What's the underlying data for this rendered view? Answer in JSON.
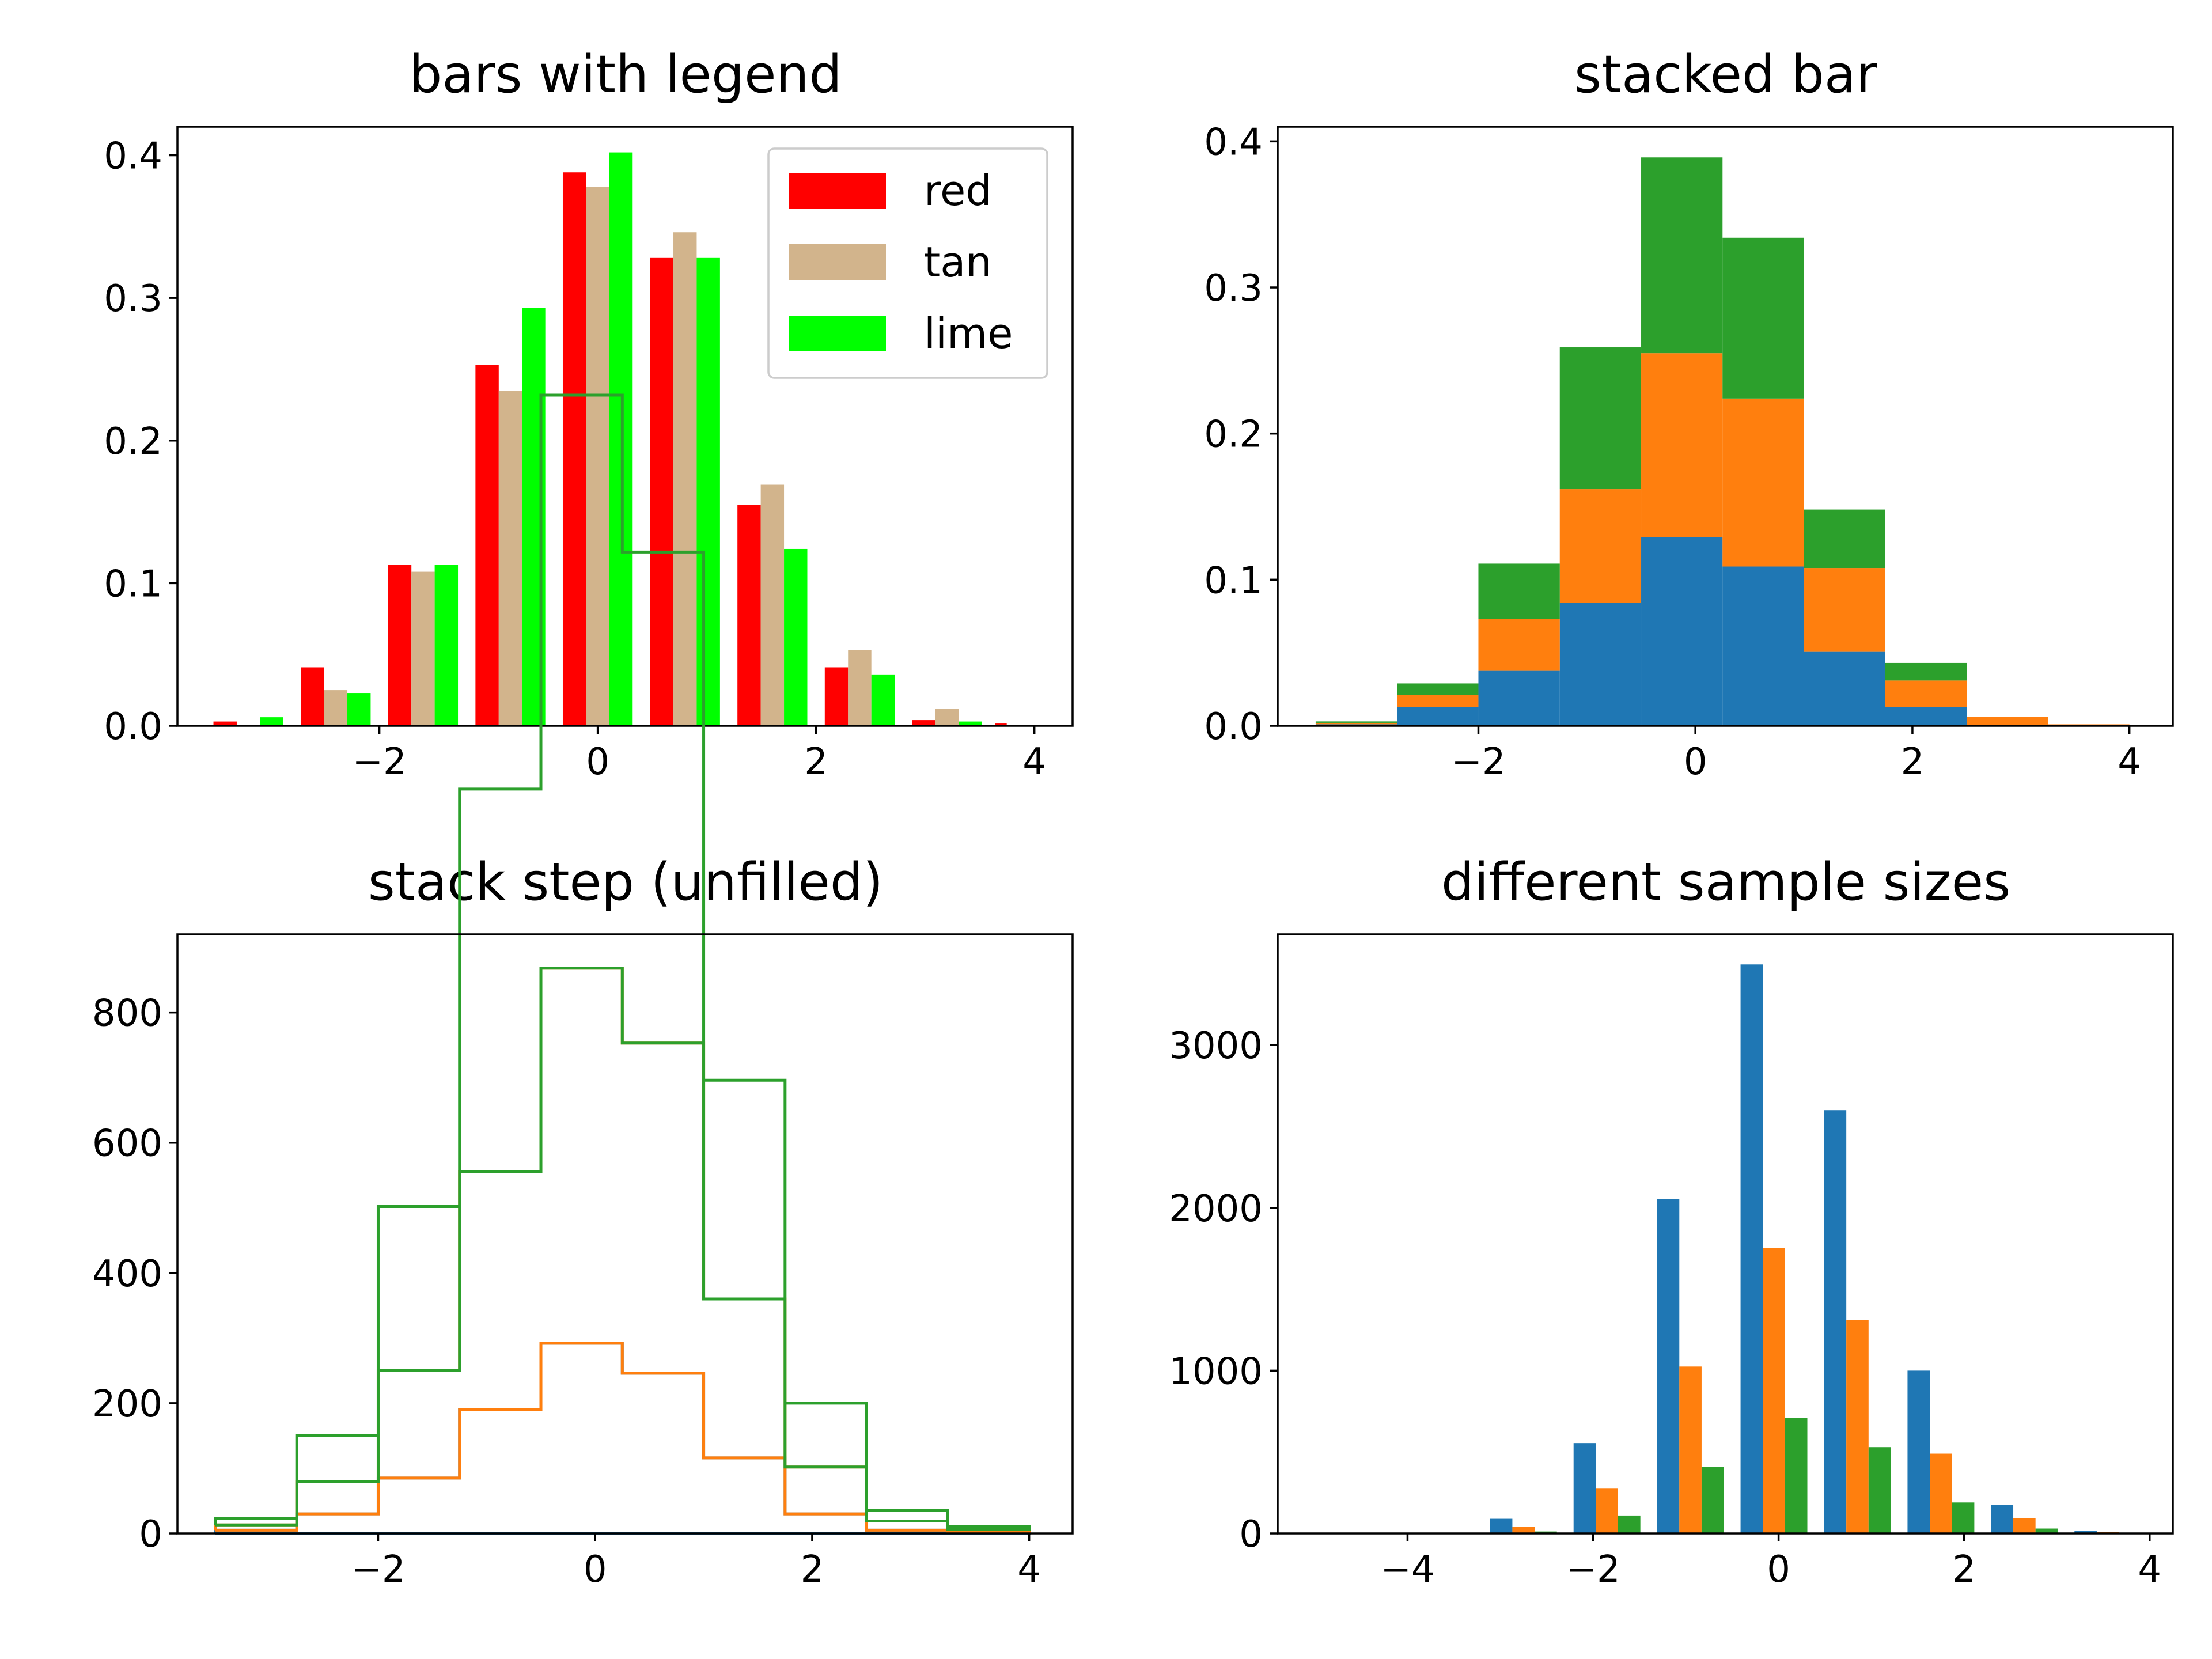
{
  "chart_data": [
    {
      "type": "bar",
      "variant": "grouped-histogram",
      "title": "bars with legend",
      "xlabel": "",
      "ylabel": "",
      "xlim": [
        -3.85,
        4.35
      ],
      "ylim": [
        0,
        0.42
      ],
      "xticks": [
        -2,
        0,
        2,
        4
      ],
      "yticks": [
        0.0,
        0.1,
        0.2,
        0.3,
        0.4
      ],
      "xtick_labels": [
        "−2",
        "0",
        "2",
        "4"
      ],
      "ytick_labels": [
        "0.0",
        "0.1",
        "0.2",
        "0.3",
        "0.4"
      ],
      "bin_edges": [
        -3.6,
        -2.8,
        -2.0,
        -1.2,
        -0.4,
        0.4,
        1.2,
        2.0,
        2.8,
        3.6,
        4.0
      ],
      "legend": {
        "position": "top-right",
        "entries": [
          "red",
          "tan",
          "lime"
        ]
      },
      "grid": false,
      "series": [
        {
          "name": "red",
          "color": "#ff0000",
          "values": [
            0.003,
            0.041,
            0.113,
            0.253,
            0.388,
            0.328,
            0.155,
            0.041,
            0.004,
            0.002
          ]
        },
        {
          "name": "tan",
          "color": "#d2b48c",
          "values": [
            0.0,
            0.025,
            0.108,
            0.235,
            0.378,
            0.346,
            0.169,
            0.053,
            0.012,
            0.0
          ]
        },
        {
          "name": "lime",
          "color": "#00ff00",
          "values": [
            0.006,
            0.023,
            0.113,
            0.293,
            0.402,
            0.328,
            0.124,
            0.036,
            0.003,
            0.0005
          ]
        }
      ]
    },
    {
      "type": "bar",
      "variant": "stacked-histogram",
      "title": "stacked bar",
      "xlabel": "",
      "ylabel": "",
      "xlim": [
        -3.85,
        4.4
      ],
      "ylim": [
        0,
        0.41
      ],
      "xticks": [
        -2,
        0,
        2,
        4
      ],
      "yticks": [
        0.0,
        0.1,
        0.2,
        0.3,
        0.4
      ],
      "xtick_labels": [
        "−2",
        "0",
        "2",
        "4"
      ],
      "ytick_labels": [
        "0.0",
        "0.1",
        "0.2",
        "0.3",
        "0.4"
      ],
      "bin_edges": [
        -3.5,
        -2.75,
        -2.0,
        -1.25,
        -0.5,
        0.25,
        1.0,
        1.75,
        2.5,
        3.25,
        4.0
      ],
      "grid": false,
      "series": [
        {
          "color": "#1f77b4",
          "values": [
            0.001,
            0.013,
            0.038,
            0.084,
            0.129,
            0.109,
            0.051,
            0.013,
            0.0,
            0.0
          ]
        },
        {
          "color": "#ff7f0e",
          "values": [
            0.001,
            0.008,
            0.035,
            0.078,
            0.126,
            0.115,
            0.057,
            0.018,
            0.006,
            0.001
          ]
        },
        {
          "color": "#2ca02c",
          "values": [
            0.001,
            0.008,
            0.038,
            0.097,
            0.134,
            0.11,
            0.04,
            0.012,
            0.0,
            0.0
          ]
        }
      ]
    },
    {
      "type": "line",
      "variant": "stacked-step-histogram",
      "title": "stack step (unfilled)",
      "xlabel": "",
      "ylabel": "",
      "xlim": [
        -3.85,
        4.4
      ],
      "ylim": [
        0,
        920
      ],
      "xticks": [
        -2,
        0,
        2,
        4
      ],
      "yticks": [
        0,
        200,
        400,
        600,
        800
      ],
      "xtick_labels": [
        "−2",
        "0",
        "2",
        "4"
      ],
      "ytick_labels": [
        "0",
        "200",
        "400",
        "600",
        "800"
      ],
      "bin_edges": [
        -3.5,
        -2.75,
        -2.0,
        -1.25,
        -0.5,
        0.25,
        1.0,
        1.75,
        2.5,
        3.25,
        4.0
      ],
      "grid": false,
      "series": [
        {
          "color": "#1f77b4",
          "values": [
            5,
            30,
            85,
            190,
            292,
            246,
            116,
            30,
            5,
            2
          ]
        },
        {
          "color": "#ff7f0e",
          "values": [
            8,
            50,
            165,
            366,
            576,
            507,
            244,
            72,
            14,
            4
          ]
        },
        {
          "color": "#2ca02c",
          "values": [
            10,
            70,
            252,
            587,
            880,
            754,
            336,
            98,
            16,
            5
          ]
        }
      ]
    },
    {
      "type": "bar",
      "variant": "grouped-histogram",
      "title": "different sample sizes",
      "xlabel": "",
      "ylabel": "",
      "xlim": [
        -5.4,
        4.25
      ],
      "ylim": [
        0,
        3680
      ],
      "xticks": [
        -4,
        -2,
        0,
        2,
        4
      ],
      "yticks": [
        0,
        1000,
        2000,
        3000
      ],
      "xtick_labels": [
        "−4",
        "−2",
        "0",
        "2",
        "4"
      ],
      "ytick_labels": [
        "0",
        "1000",
        "2000",
        "3000"
      ],
      "bin_edges": [
        -5.0,
        -4.1,
        -3.2,
        -2.3,
        -1.4,
        -0.5,
        0.4,
        1.3,
        2.2,
        3.1,
        4.0
      ],
      "grid": false,
      "series": [
        {
          "color": "#1f77b4",
          "values": [
            2,
            5,
            90,
            555,
            2055,
            3495,
            2600,
            1000,
            175,
            15
          ]
        },
        {
          "color": "#ff7f0e",
          "values": [
            1,
            3,
            40,
            275,
            1025,
            1755,
            1310,
            490,
            95,
            10
          ]
        },
        {
          "color": "#2ca02c",
          "values": [
            0,
            1,
            12,
            110,
            410,
            710,
            530,
            190,
            30,
            3
          ]
        }
      ]
    }
  ]
}
